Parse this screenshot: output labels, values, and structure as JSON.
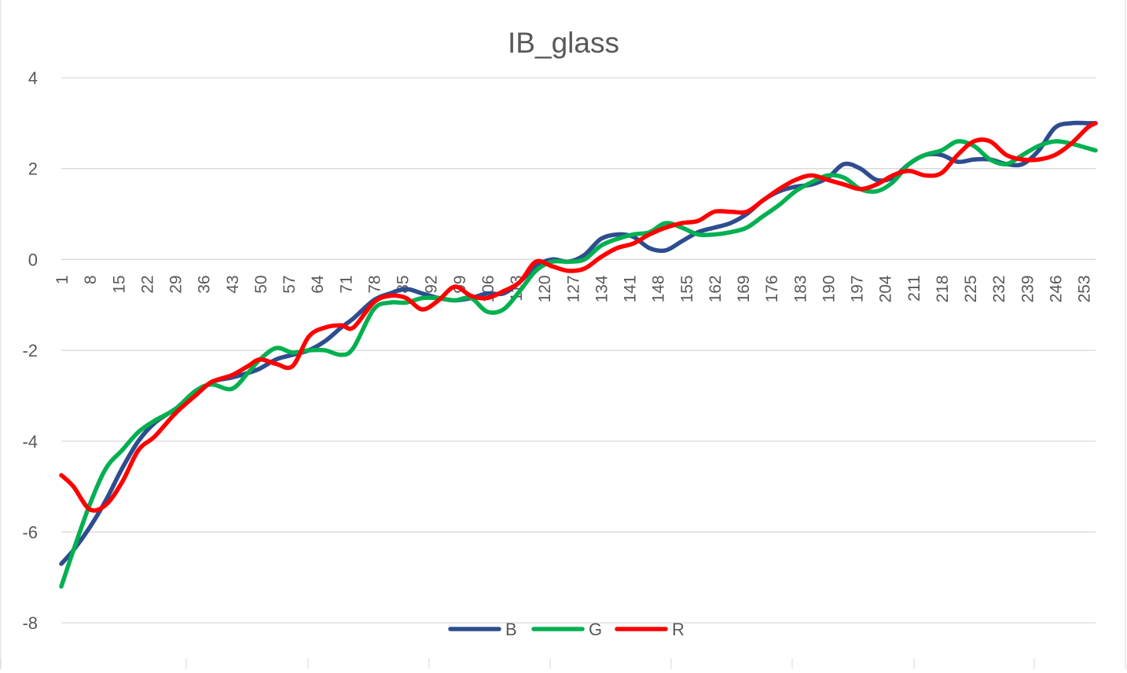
{
  "chart_data": {
    "type": "line",
    "title": "IB_glass",
    "xlabel": "",
    "ylabel": "",
    "ylim": [
      -9,
      4
    ],
    "y_ticks": [
      4,
      2,
      0,
      -2,
      -4,
      -6,
      -8
    ],
    "x_range": [
      1,
      256
    ],
    "x_tick_labels": [
      "1",
      "8",
      "15",
      "22",
      "29",
      "36",
      "43",
      "50",
      "57",
      "64",
      "71",
      "78",
      "85",
      "92",
      "99",
      "106",
      "113",
      "120",
      "127",
      "134",
      "141",
      "148",
      "155",
      "162",
      "169",
      "176",
      "183",
      "190",
      "197",
      "204",
      "211",
      "218",
      "225",
      "232",
      "239",
      "246",
      "253"
    ],
    "grid": "horizontal",
    "legend_position": "bottom",
    "series": [
      {
        "name": "B",
        "color": "#2e4d8f",
        "x": [
          1,
          4,
          8,
          12,
          16,
          20,
          24,
          29,
          34,
          38,
          43,
          47,
          50,
          54,
          58,
          62,
          66,
          70,
          73,
          78,
          82,
          86,
          90,
          94,
          98,
          102,
          106,
          110,
          114,
          118,
          122,
          126,
          130,
          134,
          138,
          142,
          146,
          150,
          154,
          158,
          162,
          166,
          170,
          174,
          178,
          182,
          186,
          190,
          194,
          198,
          202,
          206,
          210,
          214,
          218,
          222,
          226,
          230,
          234,
          238,
          242,
          246,
          250,
          254,
          256
        ],
        "y": [
          -6.7,
          -6.4,
          -5.9,
          -5.3,
          -4.6,
          -4.0,
          -3.6,
          -3.3,
          -3.0,
          -2.7,
          -2.6,
          -2.5,
          -2.4,
          -2.2,
          -2.1,
          -2.0,
          -1.8,
          -1.5,
          -1.3,
          -0.9,
          -0.75,
          -0.65,
          -0.75,
          -0.85,
          -0.9,
          -0.85,
          -0.75,
          -0.75,
          -0.5,
          -0.15,
          0.0,
          -0.05,
          0.1,
          0.45,
          0.55,
          0.5,
          0.25,
          0.2,
          0.4,
          0.6,
          0.7,
          0.8,
          1.0,
          1.3,
          1.5,
          1.6,
          1.65,
          1.8,
          2.1,
          2.0,
          1.75,
          1.8,
          2.1,
          2.3,
          2.3,
          2.15,
          2.2,
          2.2,
          2.1,
          2.1,
          2.4,
          2.9,
          3.0,
          3.0,
          3.0
        ]
      },
      {
        "name": "G",
        "color": "#00b050",
        "x": [
          1,
          4,
          8,
          12,
          16,
          20,
          24,
          29,
          34,
          38,
          43,
          47,
          50,
          54,
          58,
          62,
          66,
          70,
          73,
          78,
          82,
          86,
          90,
          94,
          98,
          102,
          106,
          110,
          114,
          118,
          122,
          126,
          130,
          134,
          138,
          142,
          146,
          150,
          154,
          158,
          162,
          166,
          170,
          174,
          178,
          182,
          186,
          190,
          194,
          198,
          202,
          206,
          210,
          214,
          218,
          222,
          226,
          230,
          234,
          238,
          242,
          246,
          250,
          254,
          256
        ],
        "y": [
          -7.2,
          -6.4,
          -5.4,
          -4.6,
          -4.2,
          -3.8,
          -3.55,
          -3.3,
          -2.9,
          -2.75,
          -2.85,
          -2.5,
          -2.2,
          -1.95,
          -2.05,
          -2.0,
          -2.0,
          -2.1,
          -1.95,
          -1.1,
          -0.95,
          -0.95,
          -0.85,
          -0.85,
          -0.9,
          -0.85,
          -1.15,
          -1.1,
          -0.7,
          -0.25,
          -0.05,
          -0.05,
          0.0,
          0.3,
          0.45,
          0.55,
          0.6,
          0.8,
          0.7,
          0.55,
          0.55,
          0.6,
          0.7,
          0.95,
          1.2,
          1.5,
          1.7,
          1.85,
          1.8,
          1.55,
          1.5,
          1.7,
          2.1,
          2.3,
          2.4,
          2.6,
          2.5,
          2.2,
          2.1,
          2.3,
          2.5,
          2.6,
          2.55,
          2.45,
          2.4
        ]
      },
      {
        "name": "R",
        "color": "#ff0000",
        "x": [
          1,
          4,
          8,
          12,
          16,
          20,
          24,
          29,
          34,
          38,
          43,
          47,
          50,
          54,
          58,
          62,
          66,
          70,
          73,
          78,
          82,
          86,
          90,
          94,
          98,
          102,
          106,
          110,
          114,
          118,
          122,
          126,
          130,
          134,
          138,
          142,
          146,
          150,
          154,
          158,
          162,
          166,
          170,
          174,
          178,
          182,
          186,
          190,
          194,
          198,
          202,
          206,
          210,
          214,
          218,
          222,
          226,
          230,
          234,
          238,
          242,
          246,
          250,
          254,
          256
        ],
        "y": [
          -4.75,
          -5.0,
          -5.5,
          -5.4,
          -4.9,
          -4.2,
          -3.9,
          -3.4,
          -3.0,
          -2.7,
          -2.55,
          -2.35,
          -2.2,
          -2.3,
          -2.35,
          -1.7,
          -1.5,
          -1.45,
          -1.5,
          -0.95,
          -0.8,
          -0.85,
          -1.1,
          -0.9,
          -0.6,
          -0.8,
          -0.85,
          -0.7,
          -0.5,
          -0.05,
          -0.15,
          -0.25,
          -0.2,
          0.05,
          0.25,
          0.35,
          0.55,
          0.7,
          0.8,
          0.85,
          1.05,
          1.05,
          1.05,
          1.3,
          1.55,
          1.75,
          1.85,
          1.75,
          1.65,
          1.55,
          1.65,
          1.85,
          1.95,
          1.85,
          1.9,
          2.3,
          2.6,
          2.6,
          2.3,
          2.2,
          2.2,
          2.3,
          2.55,
          2.9,
          3.0
        ]
      }
    ]
  }
}
